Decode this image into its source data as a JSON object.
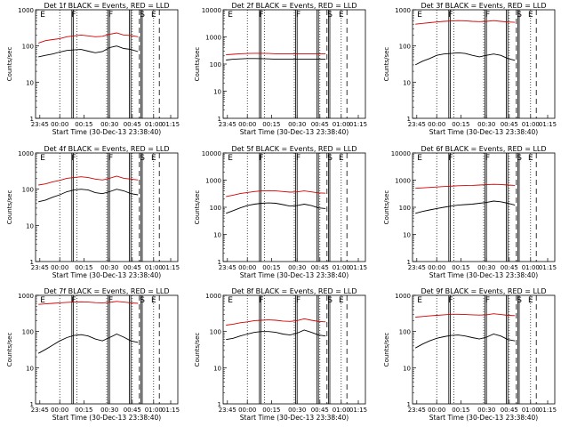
{
  "common": {
    "ylabel": "Counts/sec",
    "xlabel": "Start Time (30-Dec-13 23:38:40)",
    "x_tick_labels": [
      "23:45",
      "00:00",
      "00:15",
      "00:30",
      "00:45",
      "01:00",
      "01:15"
    ],
    "y_tick_labels": [
      "1",
      "10",
      "100",
      "1000",
      "10000"
    ],
    "event_colour": "#000000",
    "lld_colour": "#d40000",
    "markers": [
      "E",
      "F",
      "F",
      "S",
      "E"
    ]
  },
  "chart_data": [
    {
      "type": "line",
      "title": "Det 1f BLACK = Events, RED = LLD",
      "xlabel": "Start Time (30-Dec-13 23:38:40)",
      "ylabel": "Counts/sec",
      "ylim": [
        1,
        1000
      ],
      "y_scale": "log",
      "x_tick_labels": [
        "23:45",
        "00:00",
        "00:15",
        "00:30",
        "00:45",
        "01:00",
        "01:15"
      ],
      "series": [
        {
          "name": "Events",
          "color": "#000000",
          "values": [
            50,
            55,
            60,
            68,
            75,
            78,
            80,
            72,
            65,
            70,
            90,
            100,
            85,
            80,
            70
          ]
        },
        {
          "name": "LLD",
          "color": "#d40000",
          "values": [
            120,
            140,
            150,
            160,
            180,
            190,
            200,
            190,
            180,
            185,
            210,
            230,
            200,
            195,
            180
          ]
        }
      ]
    },
    {
      "type": "line",
      "title": "Det 2f BLACK = Events, RED = LLD",
      "xlabel": "Start Time (30-Dec-13 23:38:40)",
      "ylabel": "Counts/sec",
      "ylim": [
        1,
        10000
      ],
      "y_scale": "log",
      "x_tick_labels": [
        "23:45",
        "00:00",
        "00:15",
        "00:30",
        "00:45",
        "01:00",
        "01:15"
      ],
      "series": [
        {
          "name": "Events",
          "color": "#000000",
          "values": [
            140,
            150,
            155,
            160,
            160,
            158,
            155,
            150,
            150,
            150,
            150,
            150,
            150,
            150,
            150
          ]
        },
        {
          "name": "LLD",
          "color": "#d40000",
          "values": [
            220,
            230,
            240,
            245,
            250,
            250,
            245,
            240,
            240,
            240,
            240,
            240,
            240,
            240,
            240
          ]
        }
      ]
    },
    {
      "type": "line",
      "title": "Det 3f BLACK = Events, RED = LLD",
      "xlabel": "Start Time (30-Dec-13 23:38:40)",
      "ylabel": "Counts/sec",
      "ylim": [
        1,
        1000
      ],
      "y_scale": "log",
      "x_tick_labels": [
        "23:45",
        "00:00",
        "00:15",
        "00:30",
        "00:45",
        "01:00",
        "01:15"
      ],
      "series": [
        {
          "name": "Events",
          "color": "#000000",
          "values": [
            30,
            38,
            45,
            55,
            60,
            62,
            65,
            62,
            55,
            50,
            55,
            60,
            55,
            45,
            40
          ]
        },
        {
          "name": "LLD",
          "color": "#d40000",
          "values": [
            400,
            420,
            440,
            460,
            480,
            490,
            500,
            495,
            480,
            470,
            480,
            500,
            480,
            460,
            450
          ]
        }
      ]
    },
    {
      "type": "line",
      "title": "Det 4f BLACK = Events, RED = LLD",
      "xlabel": "Start Time (30-Dec-13 23:38:40)",
      "ylabel": "Counts/sec",
      "ylim": [
        1,
        1000
      ],
      "y_scale": "log",
      "x_tick_labels": [
        "23:45",
        "00:00",
        "00:15",
        "00:30",
        "00:45",
        "01:00",
        "01:15"
      ],
      "series": [
        {
          "name": "Events",
          "color": "#000000",
          "values": [
            45,
            50,
            60,
            70,
            85,
            95,
            100,
            95,
            80,
            75,
            85,
            100,
            90,
            75,
            70
          ]
        },
        {
          "name": "LLD",
          "color": "#d40000",
          "values": [
            130,
            140,
            160,
            175,
            200,
            210,
            220,
            210,
            190,
            180,
            200,
            230,
            200,
            190,
            180
          ]
        }
      ]
    },
    {
      "type": "line",
      "title": "Det 5f BLACK = Events, RED = LLD",
      "xlabel": "Start Time (30-Dec-13 23:38:40)",
      "ylabel": "Counts/sec",
      "ylim": [
        1,
        10000
      ],
      "y_scale": "log",
      "x_tick_labels": [
        "23:45",
        "00:00",
        "00:15",
        "00:30",
        "00:45",
        "01:00",
        "01:15"
      ],
      "series": [
        {
          "name": "Events",
          "color": "#000000",
          "values": [
            60,
            75,
            95,
            115,
            130,
            140,
            145,
            140,
            125,
            110,
            115,
            130,
            115,
            95,
            90
          ]
        },
        {
          "name": "LLD",
          "color": "#d40000",
          "values": [
            250,
            280,
            320,
            350,
            380,
            400,
            410,
            400,
            380,
            360,
            370,
            400,
            370,
            340,
            330
          ]
        }
      ]
    },
    {
      "type": "line",
      "title": "Det 6f BLACK = Events, RED = LLD",
      "xlabel": "Start Time (30-Dec-13 23:38:40)",
      "ylabel": "Counts/sec",
      "ylim": [
        1,
        10000
      ],
      "y_scale": "log",
      "x_tick_labels": [
        "23:45",
        "00:00",
        "00:15",
        "00:30",
        "00:45",
        "01:00",
        "01:15"
      ],
      "series": [
        {
          "name": "Events",
          "color": "#000000",
          "values": [
            60,
            70,
            80,
            90,
            100,
            110,
            120,
            125,
            130,
            140,
            150,
            170,
            160,
            140,
            120
          ]
        },
        {
          "name": "LLD",
          "color": "#d40000",
          "values": [
            500,
            520,
            540,
            560,
            580,
            600,
            620,
            630,
            640,
            660,
            680,
            700,
            690,
            660,
            640
          ]
        }
      ]
    },
    {
      "type": "line",
      "title": "Det 7f BLACK = Events, RED = LLD",
      "xlabel": "Start Time (30-Dec-13 23:38:40)",
      "ylabel": "Counts/sec",
      "ylim": [
        1,
        1000
      ],
      "y_scale": "log",
      "x_tick_labels": [
        "23:45",
        "00:00",
        "00:15",
        "00:30",
        "00:45",
        "01:00",
        "01:15"
      ],
      "series": [
        {
          "name": "Events",
          "color": "#000000",
          "values": [
            25,
            32,
            42,
            55,
            68,
            78,
            82,
            75,
            62,
            55,
            68,
            85,
            70,
            55,
            50
          ]
        },
        {
          "name": "LLD",
          "color": "#d40000",
          "values": [
            560,
            580,
            600,
            620,
            640,
            650,
            660,
            650,
            630,
            620,
            640,
            680,
            650,
            620,
            600
          ]
        }
      ]
    },
    {
      "type": "line",
      "title": "Det 8f BLACK = Events, RED = LLD",
      "xlabel": "Start Time (30-Dec-13 23:38:40)",
      "ylabel": "Counts/sec",
      "ylim": [
        1,
        1000
      ],
      "y_scale": "log",
      "x_tick_labels": [
        "23:45",
        "00:00",
        "00:15",
        "00:30",
        "00:45",
        "01:00",
        "01:15"
      ],
      "series": [
        {
          "name": "Events",
          "color": "#000000",
          "values": [
            60,
            65,
            75,
            85,
            95,
            100,
            100,
            95,
            85,
            80,
            90,
            110,
            95,
            80,
            75
          ]
        },
        {
          "name": "LLD",
          "color": "#d40000",
          "values": [
            150,
            160,
            175,
            185,
            200,
            205,
            210,
            205,
            195,
            190,
            200,
            225,
            205,
            190,
            185
          ]
        }
      ]
    },
    {
      "type": "line",
      "title": "Det 9f BLACK = Events, RED = LLD",
      "xlabel": "Start Time (30-Dec-13 23:38:40)",
      "ylabel": "Counts/sec",
      "ylim": [
        1,
        1000
      ],
      "y_scale": "log",
      "x_tick_labels": [
        "23:45",
        "00:00",
        "00:15",
        "00:30",
        "00:45",
        "01:00",
        "01:15"
      ],
      "series": [
        {
          "name": "Events",
          "color": "#000000",
          "values": [
            35,
            45,
            55,
            65,
            72,
            78,
            80,
            75,
            68,
            62,
            70,
            85,
            75,
            60,
            55
          ]
        },
        {
          "name": "LLD",
          "color": "#d40000",
          "values": [
            250,
            260,
            270,
            280,
            290,
            300,
            300,
            295,
            290,
            285,
            290,
            310,
            295,
            280,
            275
          ]
        }
      ]
    }
  ]
}
